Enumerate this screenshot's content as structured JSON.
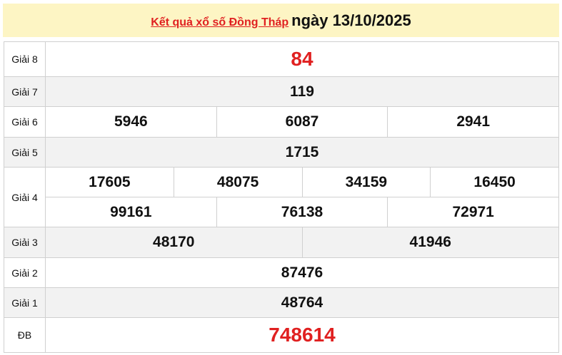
{
  "header": {
    "link": "Kết quả xổ số Đồng Tháp",
    "date": "ngày 13/10/2025"
  },
  "colors": {
    "red": "#e02020",
    "header_bg": "#fdf5c4"
  },
  "prizes": [
    {
      "label": "Giải 8",
      "numbers": [
        "84"
      ]
    },
    {
      "label": "Giải 7",
      "numbers": [
        "119"
      ]
    },
    {
      "label": "Giải 6",
      "numbers": [
        "5946",
        "6087",
        "2941"
      ]
    },
    {
      "label": "Giải 5",
      "numbers": [
        "1715"
      ]
    },
    {
      "label": "Giải 4",
      "numbers": [
        "17605",
        "48075",
        "34159",
        "16450",
        "99161",
        "76138",
        "72971"
      ]
    },
    {
      "label": "Giải 3",
      "numbers": [
        "48170",
        "41946"
      ]
    },
    {
      "label": "Giải 2",
      "numbers": [
        "87476"
      ]
    },
    {
      "label": "Giải 1",
      "numbers": [
        "48764"
      ]
    },
    {
      "label": "ĐB",
      "numbers": [
        "748614"
      ]
    }
  ]
}
